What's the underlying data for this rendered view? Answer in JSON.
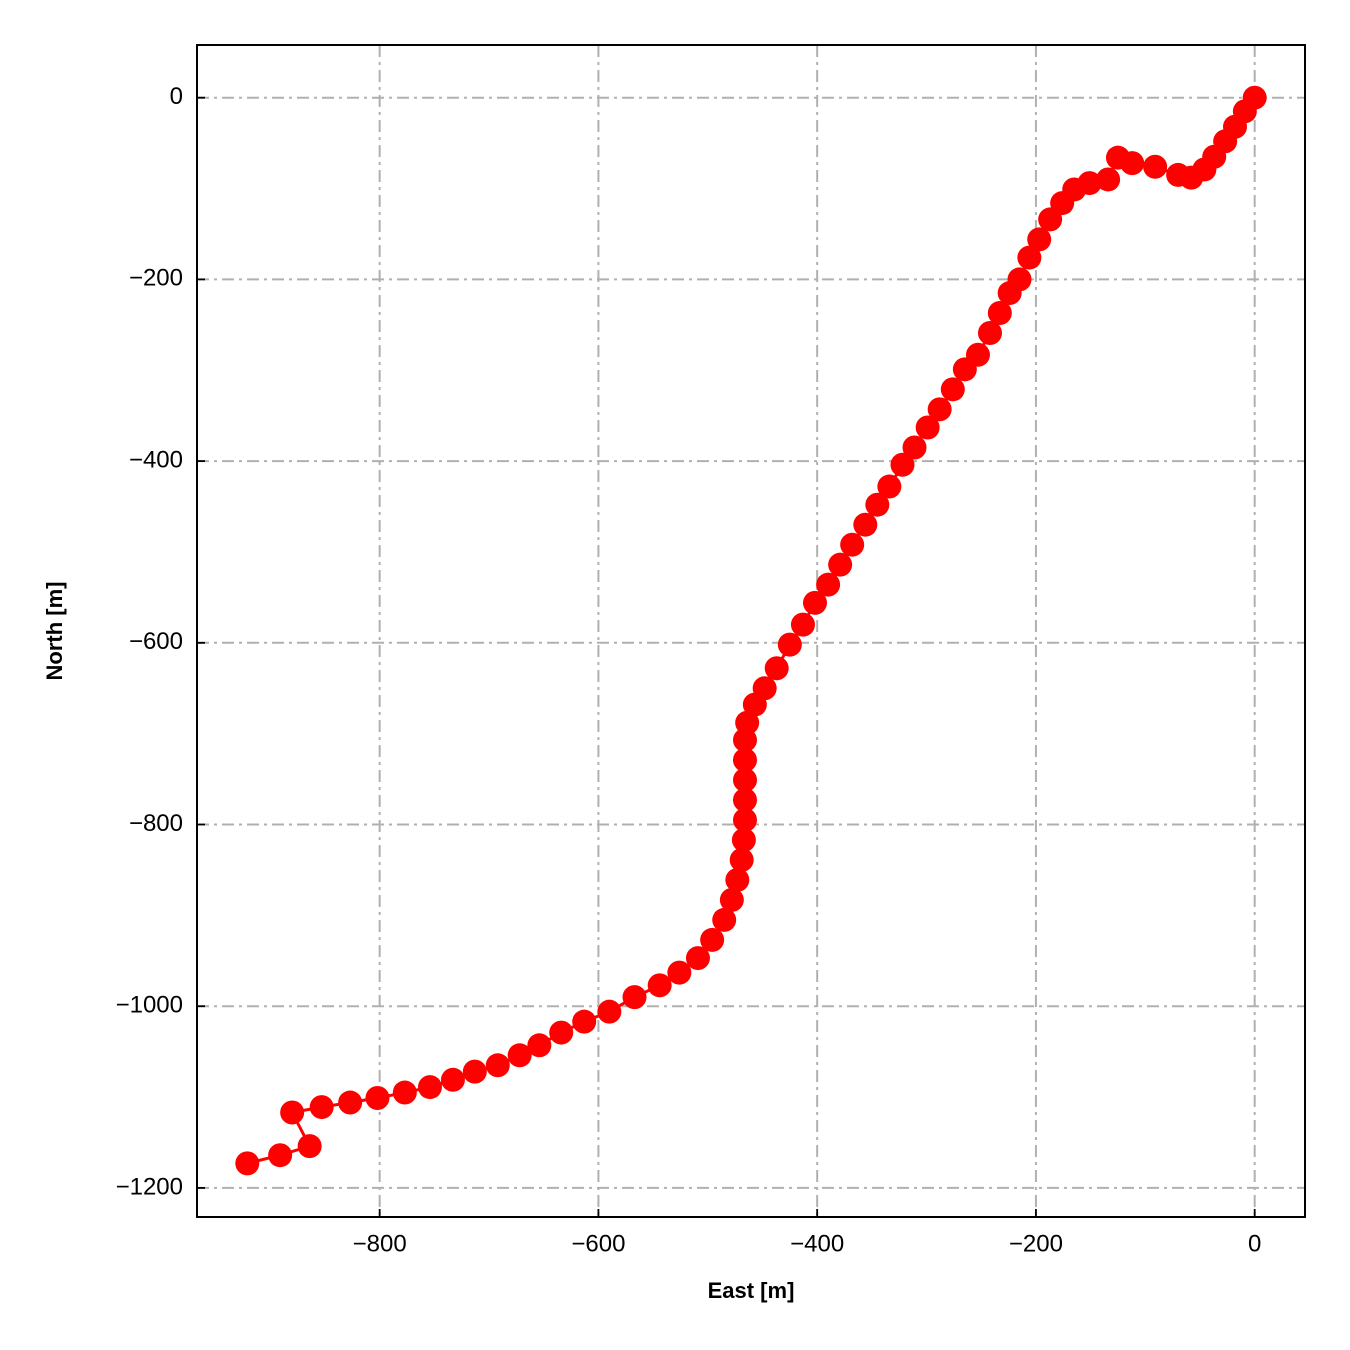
{
  "chart_data": {
    "type": "line",
    "xlabel": "East [m]",
    "ylabel": "North [m]",
    "color": "#ff0000",
    "marker": "o",
    "grid": true,
    "x": [
      0,
      -9,
      -18,
      -27,
      -37,
      -46,
      -58,
      -70,
      -91,
      -112,
      -125,
      -134,
      -151,
      -165,
      -176,
      -187,
      -197,
      -206,
      -215,
      -224,
      -233,
      -242,
      -253,
      -265,
      -276,
      -288,
      -299,
      -311,
      -322,
      -334,
      -345,
      -356,
      -368,
      -379,
      -390,
      -402,
      -413,
      -425,
      -437,
      -448,
      -457,
      -464,
      -466,
      -466,
      -466,
      -466,
      -466,
      -467,
      -469,
      -473,
      -478,
      -485,
      -496,
      -509,
      -526,
      -544,
      -567,
      -590,
      -613,
      -634,
      -654,
      -672,
      -692,
      -713,
      -733,
      -754,
      -777,
      -802,
      -827,
      -853,
      -880,
      -864,
      -891,
      -921
    ],
    "y": [
      0,
      -15,
      -32,
      -48,
      -65,
      -79,
      -88,
      -85,
      -76,
      -72,
      -66,
      -90,
      -94,
      -101,
      -116,
      -134,
      -156,
      -176,
      -200,
      -215,
      -237,
      -259,
      -283,
      -299,
      -321,
      -343,
      -363,
      -385,
      -404,
      -428,
      -448,
      -470,
      -492,
      -514,
      -536,
      -556,
      -580,
      -602,
      -628,
      -650,
      -668,
      -688,
      -707,
      -729,
      -751,
      -773,
      -795,
      -817,
      -839,
      -861,
      -883,
      -905,
      -927,
      -947,
      -963,
      -977,
      -990,
      -1006,
      -1017,
      -1029,
      -1043,
      -1054,
      -1065,
      -1072,
      -1081,
      -1089,
      -1095,
      -1101,
      -1106,
      -1111,
      -1117,
      -1154,
      -1164,
      -1173
    ],
    "xlim": [
      -967,
      46
    ],
    "ylim": [
      -1232,
      58
    ],
    "xticks": [
      {
        "value": -800,
        "label": "−800"
      },
      {
        "value": -600,
        "label": "−600"
      },
      {
        "value": -400,
        "label": "−400"
      },
      {
        "value": -200,
        "label": "−200"
      },
      0
    ],
    "yticks": [
      0,
      {
        "value": -200,
        "label": "−200"
      },
      {
        "value": -400,
        "label": "−400"
      },
      {
        "value": -600,
        "label": "−600"
      },
      {
        "value": -800,
        "label": "−800"
      },
      {
        "value": -1000,
        "label": "−1000"
      },
      {
        "value": -1200,
        "label": "−1200"
      }
    ]
  }
}
